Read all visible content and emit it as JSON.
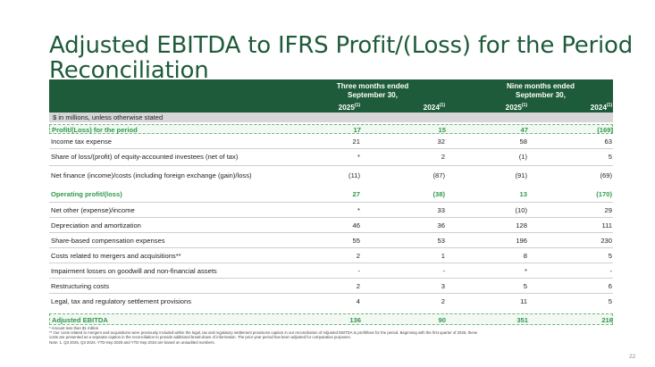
{
  "title": "Adjusted EBITDA to IFRS Profit/(Loss) for the Period Reconciliation",
  "header": {
    "group1": {
      "line1": "Three months ended",
      "line2": "September 30,"
    },
    "group2": {
      "line1": "Nine months ended",
      "line2": "September 30,"
    },
    "years": [
      {
        "year": "2025",
        "note": "(1)"
      },
      {
        "year": "2024",
        "note": "(1)"
      },
      {
        "year": "2025",
        "note": "(1)"
      },
      {
        "year": "2024",
        "note": "(1)"
      }
    ]
  },
  "unit_label": "$ in millions, unless otherwise stated",
  "rows": [
    {
      "label": "Profit/(Loss) for the period",
      "values": [
        "17",
        "15",
        "47",
        "(169)"
      ],
      "style": "highlight-box"
    },
    {
      "label": "Income tax expense",
      "values": [
        "21",
        "32",
        "58",
        "63"
      ],
      "style": "normal"
    },
    {
      "label": "Share of loss/(profit) of equity-accounted investees (net of tax)",
      "values": [
        "*",
        "2",
        "(1)",
        "5"
      ],
      "style": "normal"
    },
    {
      "label": "Net finance (income)/costs (including foreign exchange (gain)/loss)",
      "values": [
        "(11)",
        "(87)",
        "(91)",
        "(69)"
      ],
      "style": "normal"
    },
    {
      "label": "Operating profit/(loss)",
      "values": [
        "27",
        "(38)",
        "13",
        "(170)"
      ],
      "style": "highlight"
    },
    {
      "label": "Net other (expense)/income",
      "values": [
        "*",
        "33",
        "(10)",
        "29"
      ],
      "style": "normal"
    },
    {
      "label": "Depreciation and amortization",
      "values": [
        "46",
        "36",
        "128",
        "111"
      ],
      "style": "normal"
    },
    {
      "label": "Share-based compensation expenses",
      "values": [
        "55",
        "53",
        "196",
        "230"
      ],
      "style": "normal"
    },
    {
      "label": "Costs related to mergers and acquisitions**",
      "values": [
        "2",
        "1",
        "8",
        "5"
      ],
      "style": "normal"
    },
    {
      "label": "Impairment losses on goodwill and non-financial assets",
      "values": [
        "-",
        "-",
        "*",
        "-"
      ],
      "style": "normal"
    },
    {
      "label": "Restructuring costs",
      "values": [
        "2",
        "3",
        "5",
        "6"
      ],
      "style": "normal"
    },
    {
      "label": "Legal, tax and regulatory settlement provisions",
      "values": [
        "4",
        "2",
        "11",
        "5"
      ],
      "style": "normal"
    },
    {
      "label": "Adjusted EBITDA",
      "values": [
        "136",
        "90",
        "351",
        "216"
      ],
      "style": "highlight-box"
    }
  ],
  "notes": [
    "* Amount less than $1 million",
    "** Our costs related to mergers and acquisitions were previously included within the legal, tax and regulatory settlement provisions caption in our reconciliation of Adjusted EBITDA to profit/loss for the period. Beginning with the first quarter of 2025, these",
    "costs are presented as a separate caption in the reconciliation to provide additional break-down of information.  The prior year period has been adjusted for comparative purposes.",
    "Note: 1. Q3 2025, Q3 2024, YTD-Sep 2025 and YTD-Sep 2024 are based on unaudited numbers."
  ],
  "page_number": "22",
  "colors": {
    "brand_green": "#1e5b3a",
    "highlight_green": "#2e9a4b",
    "box_border": "#6cb978"
  }
}
